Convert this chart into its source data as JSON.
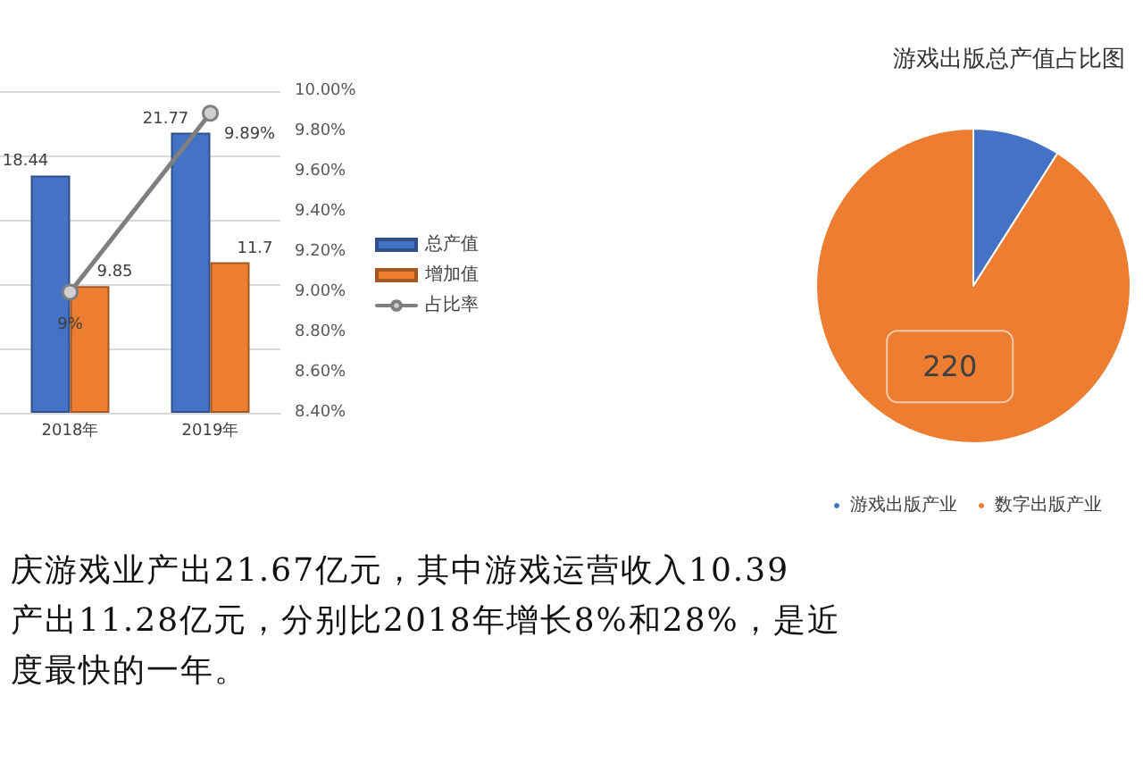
{
  "chart_data": [
    {
      "type": "bar",
      "categories": [
        "2018年",
        "2019年"
      ],
      "series": [
        {
          "name": "总产值",
          "color": "#4472c4",
          "values": [
            18.44,
            21.77
          ],
          "value_labels": [
            "18.44",
            "21.77"
          ]
        },
        {
          "name": "增加值",
          "color": "#ed7d31",
          "values": [
            9.85,
            11.7
          ],
          "value_labels": [
            "9.85",
            "11.7"
          ]
        },
        {
          "name": "占比率",
          "type": "line",
          "axis": "y2",
          "color": "#7f7f7f",
          "values": [
            9,
            9.89
          ],
          "value_labels": [
            "9%",
            "9.89%"
          ]
        }
      ],
      "ylim": [
        0,
        25
      ],
      "yticks": [
        {
          "value": 0,
          "label": null
        },
        {
          "value": 5,
          "label": null
        },
        {
          "value": 10,
          "label": null
        },
        {
          "value": 15,
          "label": null
        },
        {
          "value": 20,
          "label": null
        },
        {
          "value": 25,
          "label": null
        }
      ],
      "y2lim": [
        8.4,
        10
      ],
      "y2ticks": [
        {
          "value": 8.4,
          "label": "8.40%"
        },
        {
          "value": 8.6,
          "label": "8.60%"
        },
        {
          "value": 8.8,
          "label": "8.80%"
        },
        {
          "value": 9,
          "label": "9.00%"
        },
        {
          "value": 9.2,
          "label": "9.20%"
        },
        {
          "value": 9.4,
          "label": "9.40%"
        },
        {
          "value": 9.6,
          "label": "9.60%"
        },
        {
          "value": 9.8,
          "label": "9.80%"
        },
        {
          "value": 10,
          "label": "10.00%"
        }
      ],
      "grid": "y",
      "legend": "right",
      "marker": "circle",
      "annotations": [
        "庆游戏业产出21.67亿元，其中游戏运营收入10.39",
        "产出11.28亿元，分别比2018年增长8%和28%，是近",
        "度最快的一年。"
      ]
    },
    {
      "type": "pie",
      "title": "游戏出版总产值占比图",
      "categories": [
        "游戏出版产业",
        "数字出版产业"
      ],
      "values": [
        21.77,
        220
      ],
      "colors": [
        "#4472c4",
        "#ed7d31"
      ],
      "value_labels": [
        null,
        "220"
      ],
      "legend": "bottom"
    }
  ]
}
